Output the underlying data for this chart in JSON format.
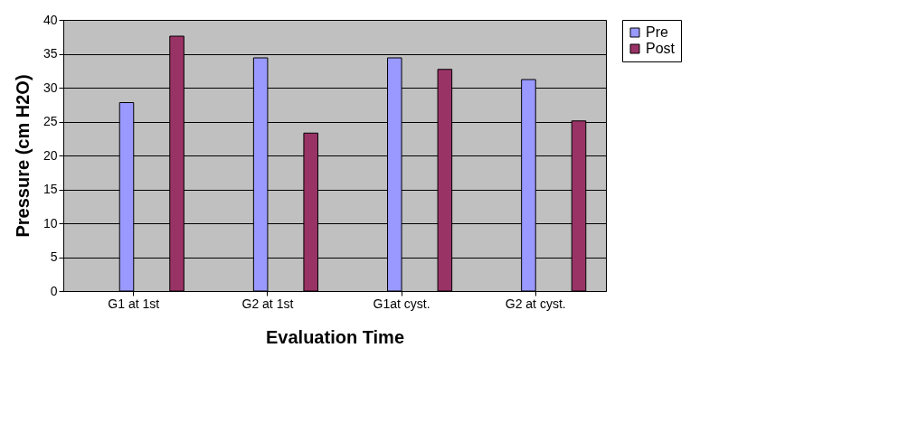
{
  "chart_data": {
    "type": "bar",
    "xlabel": "Evaluation Time",
    "ylabel": "Pressure (cm H2O)",
    "categories": [
      "G1 at 1st",
      "G2 at 1st",
      "G1at cyst.",
      "G2 at cyst."
    ],
    "series": [
      {
        "name": "Pre",
        "color": "#9999ff",
        "values": [
          27.8,
          34.4,
          34.4,
          31.2
        ]
      },
      {
        "name": "Post",
        "color": "#993366",
        "values": [
          37.6,
          23.3,
          32.7,
          25.1
        ]
      }
    ],
    "ylim": [
      0,
      40
    ],
    "yticks": [
      0,
      5,
      10,
      15,
      20,
      25,
      30,
      35,
      40
    ],
    "grid": "y",
    "legend": "top right"
  }
}
